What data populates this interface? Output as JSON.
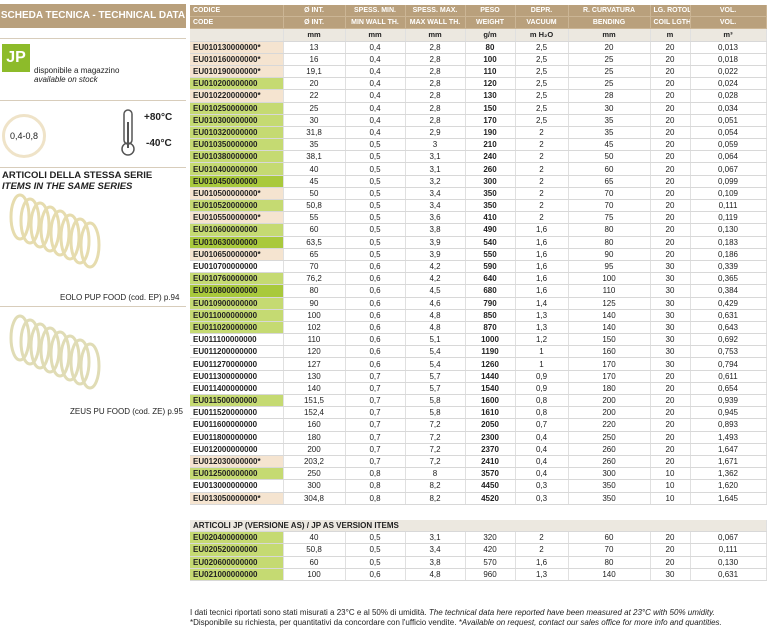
{
  "header": {
    "title": "SCHEDA TECNICA - TECHNICAL DATA"
  },
  "sidebar": {
    "logo": "JP",
    "stock_it": "disponibile a magazzino",
    "stock_en": "available on stock",
    "thickness": "0,4-0,8",
    "temp_max": "+80°C",
    "temp_min": "-40°C",
    "series_it": "ARTICOLI DELLA STESSA SERIE",
    "series_en": "ITEMS IN THE SAME SERIES",
    "related": [
      "EOLO PUP FOOD (cod. EP) p.94",
      "ZEUS PU FOOD (cod. ZE) p.95"
    ]
  },
  "table": {
    "columns_it": [
      "CODICE",
      "Ø INT.",
      "SPESS. MIN.",
      "SPESS. MAX.",
      "PESO",
      "DEPR.",
      "R. CURVATURA",
      "LG. ROTOLO",
      "VOL."
    ],
    "columns_en": [
      "CODE",
      "Ø INT.",
      "MIN WALL TH.",
      "MAX WALL TH.",
      "WEIGHT",
      "VACUUM",
      "BENDING",
      "COIL LGTH.",
      "VOL."
    ],
    "units": [
      null,
      "mm",
      "mm",
      "mm",
      "g/m",
      "m H₂O",
      "mm",
      "m",
      "m³"
    ],
    "rows": [
      [
        "EU010130000000*",
        "13",
        "0,4",
        "2,8",
        "80",
        "2,5",
        "20",
        "20",
        "0,013"
      ],
      [
        "EU010160000000*",
        "16",
        "0,4",
        "2,8",
        "100",
        "2,5",
        "25",
        "20",
        "0,018"
      ],
      [
        "EU010190000000*",
        "19,1",
        "0,4",
        "2,8",
        "110",
        "2,5",
        "25",
        "20",
        "0,022"
      ],
      [
        "EU010200000000",
        "20",
        "0,4",
        "2,8",
        "120",
        "2,5",
        "25",
        "20",
        "0,024"
      ],
      [
        "EU010220000000*",
        "22",
        "0,4",
        "2,8",
        "130",
        "2,5",
        "28",
        "20",
        "0,028"
      ],
      [
        "EU010250000000",
        "25",
        "0,4",
        "2,8",
        "150",
        "2,5",
        "30",
        "20",
        "0,034"
      ],
      [
        "EU010300000000",
        "30",
        "0,4",
        "2,8",
        "170",
        "2,5",
        "35",
        "20",
        "0,051"
      ],
      [
        "EU010320000000",
        "31,8",
        "0,4",
        "2,9",
        "190",
        "2",
        "35",
        "20",
        "0,054"
      ],
      [
        "EU010350000000",
        "35",
        "0,5",
        "3",
        "210",
        "2",
        "45",
        "20",
        "0,059"
      ],
      [
        "EU010380000000",
        "38,1",
        "0,5",
        "3,1",
        "240",
        "2",
        "50",
        "20",
        "0,064"
      ],
      [
        "EU010400000000",
        "40",
        "0,5",
        "3,1",
        "260",
        "2",
        "60",
        "20",
        "0,067"
      ],
      [
        "EU010450000000",
        "45",
        "0,5",
        "3,2",
        "300",
        "2",
        "65",
        "20",
        "0,099"
      ],
      [
        "EU010500000000*",
        "50",
        "0,5",
        "3,4",
        "350",
        "2",
        "70",
        "20",
        "0,109"
      ],
      [
        "EU010520000000",
        "50,8",
        "0,5",
        "3,4",
        "350",
        "2",
        "70",
        "20",
        "0,111"
      ],
      [
        "EU010550000000*",
        "55",
        "0,5",
        "3,6",
        "410",
        "2",
        "75",
        "20",
        "0,119"
      ],
      [
        "EU010600000000",
        "60",
        "0,5",
        "3,8",
        "490",
        "1,6",
        "80",
        "20",
        "0,130"
      ],
      [
        "EU010630000000",
        "63,5",
        "0,5",
        "3,9",
        "540",
        "1,6",
        "80",
        "20",
        "0,183"
      ],
      [
        "EU010650000000*",
        "65",
        "0,5",
        "3,9",
        "550",
        "1,6",
        "90",
        "20",
        "0,186"
      ],
      [
        "EU010700000000",
        "70",
        "0,6",
        "4,2",
        "590",
        "1,6",
        "95",
        "30",
        "0,339"
      ],
      [
        "EU010760000000",
        "76,2",
        "0,6",
        "4,2",
        "640",
        "1,6",
        "100",
        "30",
        "0,365"
      ],
      [
        "EU010800000000",
        "80",
        "0,6",
        "4,5",
        "680",
        "1,6",
        "110",
        "30",
        "0,384"
      ],
      [
        "EU010900000000",
        "90",
        "0,6",
        "4,6",
        "790",
        "1,4",
        "125",
        "30",
        "0,429"
      ],
      [
        "EU011000000000",
        "100",
        "0,6",
        "4,8",
        "850",
        "1,3",
        "140",
        "30",
        "0,631"
      ],
      [
        "EU011020000000",
        "102",
        "0,6",
        "4,8",
        "870",
        "1,3",
        "140",
        "30",
        "0,643"
      ],
      [
        "EU011100000000",
        "110",
        "0,6",
        "5,1",
        "1000",
        "1,2",
        "150",
        "30",
        "0,692"
      ],
      [
        "EU011200000000",
        "120",
        "0,6",
        "5,4",
        "1190",
        "1",
        "160",
        "30",
        "0,753"
      ],
      [
        "EU011270000000",
        "127",
        "0,6",
        "5,4",
        "1260",
        "1",
        "170",
        "30",
        "0,794"
      ],
      [
        "EU011300000000",
        "130",
        "0,7",
        "5,7",
        "1440",
        "0,9",
        "170",
        "20",
        "0,611"
      ],
      [
        "EU011400000000",
        "140",
        "0,7",
        "5,7",
        "1540",
        "0,9",
        "180",
        "20",
        "0,654"
      ],
      [
        "EU011500000000",
        "151,5",
        "0,7",
        "5,8",
        "1600",
        "0,8",
        "200",
        "20",
        "0,939"
      ],
      [
        "EU011520000000",
        "152,4",
        "0,7",
        "5,8",
        "1610",
        "0,8",
        "200",
        "20",
        "0,945"
      ],
      [
        "EU011600000000",
        "160",
        "0,7",
        "7,2",
        "2050",
        "0,7",
        "220",
        "20",
        "0,893"
      ],
      [
        "EU011800000000",
        "180",
        "0,7",
        "7,2",
        "2300",
        "0,4",
        "250",
        "20",
        "1,493"
      ],
      [
        "EU012000000000",
        "200",
        "0,7",
        "7,2",
        "2370",
        "0,4",
        "260",
        "20",
        "1,647"
      ],
      [
        "EU012030000000*",
        "203,2",
        "0,7",
        "7,2",
        "2410",
        "0,4",
        "260",
        "20",
        "1,671"
      ],
      [
        "EU012500000000",
        "250",
        "0,8",
        "8",
        "3570",
        "0,4",
        "300",
        "10",
        "1,362"
      ],
      [
        "EU013000000000",
        "300",
        "0,8",
        "8,2",
        "4450",
        "0,3",
        "350",
        "10",
        "1,620"
      ],
      [
        "EU013050000000*",
        "304,8",
        "0,8",
        "8,2",
        "4520",
        "0,3",
        "350",
        "10",
        "1,645"
      ]
    ],
    "code_colors": [
      "#f5e4d0",
      "#f5e4d0",
      "#f5e4d0",
      "#c5da72",
      "#f5e4d0",
      "#c5da72",
      "#c5da72",
      "#c5da72",
      "#c5da72",
      "#c5da72",
      "#c5da72",
      "#a9c93c",
      "#f5e4d0",
      "#c5da72",
      "#f5e4d0",
      "#c5da72",
      "#a9c93c",
      "#f5e4d0",
      "#ffffff",
      "#c5da72",
      "#a9c93c",
      "#c5da72",
      "#c5da72",
      "#c5da72",
      "#ffffff",
      "#ffffff",
      "#ffffff",
      "#ffffff",
      "#ffffff",
      "#c5da72",
      "#ffffff",
      "#ffffff",
      "#ffffff",
      "#ffffff",
      "#f5e4d0",
      "#c5da72",
      "#ffffff",
      "#f5e4d0"
    ]
  },
  "as_table": {
    "title": "ARTICOLI JP (VERSIONE AS) / JP AS VERSION ITEMS",
    "rows": [
      [
        "EU020400000000",
        "40",
        "0,5",
        "3,1",
        "320",
        "2",
        "60",
        "20",
        "0,067"
      ],
      [
        "EU020520000000",
        "50,8",
        "0,5",
        "3,4",
        "420",
        "2",
        "70",
        "20",
        "0,111"
      ],
      [
        "EU020600000000",
        "60",
        "0,5",
        "3,8",
        "570",
        "1,6",
        "80",
        "20",
        "0,130"
      ],
      [
        "EU021000000000",
        "100",
        "0,6",
        "4,8",
        "960",
        "1,3",
        "140",
        "30",
        "0,631"
      ]
    ],
    "code_colors": [
      "#c5da72",
      "#c5da72",
      "#c5da72",
      "#c5da72"
    ]
  },
  "footer": {
    "note1_it": "I dati tecnici riportati sono stati misurati a 23°C e al 50% di umidità.",
    "note1_en": "The technical data here reported have been measured at 23°C with 50% umidity.",
    "note2_it": "*Disponibile su richiesta, per quantitativi da concordare con l'ufficio vendite.",
    "note2_en": "*Available on request, contact our sales office for more info and quantities."
  }
}
